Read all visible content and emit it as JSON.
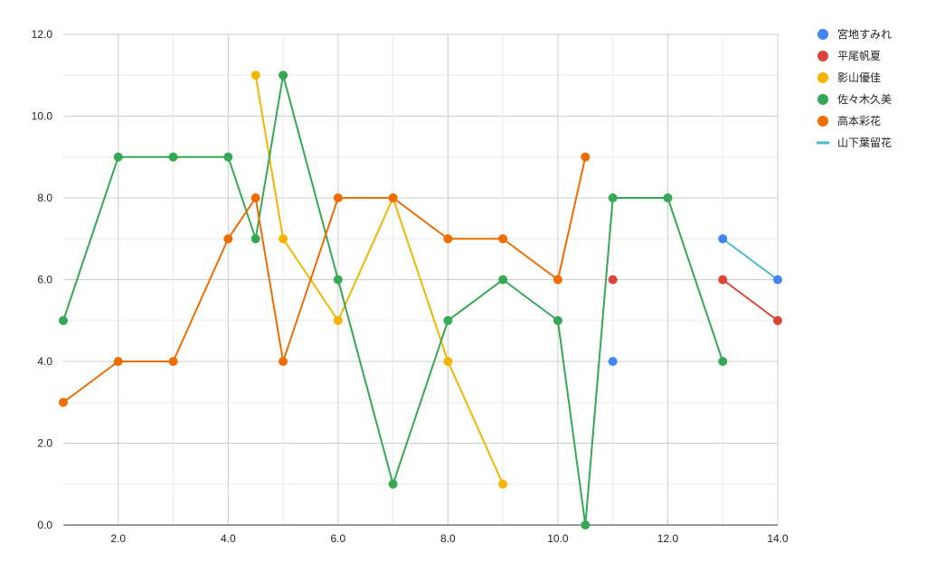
{
  "chart_data": {
    "type": "line",
    "title": "",
    "xlabel": "",
    "ylabel": "",
    "xlim": [
      1,
      14
    ],
    "ylim": [
      0,
      12
    ],
    "x_ticks": [
      "2.0",
      "4.0",
      "6.0",
      "8.0",
      "10.0",
      "12.0",
      "14.0"
    ],
    "y_ticks": [
      "0.0",
      "2.0",
      "4.0",
      "6.0",
      "8.0",
      "10.0",
      "12.0"
    ],
    "grid": true,
    "legend_position": "right",
    "series": [
      {
        "name": "宮地すみれ",
        "color": "#4285f4",
        "marker": "circle",
        "points": [
          [
            11,
            4
          ],
          [
            13,
            7
          ],
          [
            14,
            6
          ]
        ],
        "segments": [
          [
            [
              13,
              7
            ],
            [
              14,
              6
            ]
          ]
        ],
        "line_color": "#4ab8c8"
      },
      {
        "name": "平尾帆夏",
        "color": "#db4437",
        "marker": "circle",
        "points": [
          [
            11,
            6
          ],
          [
            13,
            6
          ],
          [
            14,
            5
          ]
        ],
        "segments": [
          [
            [
              13,
              6
            ],
            [
              14,
              5
            ]
          ]
        ]
      },
      {
        "name": "影山優佳",
        "color": "#f4b400",
        "marker": "circle",
        "points": [
          [
            4.5,
            11
          ],
          [
            5,
            7
          ],
          [
            6,
            5
          ],
          [
            7,
            8
          ],
          [
            8,
            4
          ],
          [
            9,
            1
          ]
        ],
        "segments": [
          [
            [
              4.5,
              11
            ],
            [
              5,
              7
            ],
            [
              6,
              5
            ],
            [
              7,
              8
            ],
            [
              8,
              4
            ],
            [
              9,
              1
            ]
          ]
        ]
      },
      {
        "name": "佐々木久美",
        "color": "#34a853",
        "marker": "circle",
        "points": [
          [
            1,
            5
          ],
          [
            2,
            9
          ],
          [
            3,
            9
          ],
          [
            4,
            9
          ],
          [
            4.5,
            7
          ],
          [
            5,
            11
          ],
          [
            6,
            6
          ],
          [
            7,
            1
          ],
          [
            8,
            5
          ],
          [
            9,
            6
          ],
          [
            10,
            5
          ],
          [
            10.5,
            0
          ],
          [
            11,
            8
          ],
          [
            12,
            8
          ],
          [
            13,
            4
          ]
        ],
        "segments": [
          [
            [
              1,
              5
            ],
            [
              2,
              9
            ],
            [
              3,
              9
            ],
            [
              4,
              9
            ],
            [
              4.5,
              7
            ],
            [
              5,
              11
            ],
            [
              6,
              6
            ],
            [
              7,
              1
            ],
            [
              8,
              5
            ],
            [
              9,
              6
            ],
            [
              10,
              5
            ],
            [
              10.5,
              0
            ],
            [
              11,
              8
            ],
            [
              12,
              8
            ],
            [
              13,
              4
            ]
          ]
        ]
      },
      {
        "name": "高本彩花",
        "color": "#ef6c00",
        "marker": "circle",
        "points": [
          [
            1,
            3
          ],
          [
            2,
            4
          ],
          [
            3,
            4
          ],
          [
            4,
            7
          ],
          [
            4.5,
            8
          ],
          [
            5,
            4
          ],
          [
            6,
            8
          ],
          [
            7,
            8
          ],
          [
            8,
            7
          ],
          [
            9,
            7
          ],
          [
            10,
            6
          ],
          [
            10.5,
            9
          ]
        ],
        "segments": [
          [
            [
              1,
              3
            ],
            [
              2,
              4
            ],
            [
              3,
              4
            ],
            [
              4,
              7
            ],
            [
              4.5,
              8
            ],
            [
              5,
              4
            ],
            [
              6,
              8
            ],
            [
              7,
              8
            ],
            [
              8,
              7
            ],
            [
              9,
              7
            ],
            [
              10,
              6
            ],
            [
              10.5,
              9
            ]
          ]
        ]
      },
      {
        "name": "山下葉留花",
        "color": "#4ab8c8",
        "marker": "line",
        "points": [],
        "segments": []
      }
    ]
  }
}
